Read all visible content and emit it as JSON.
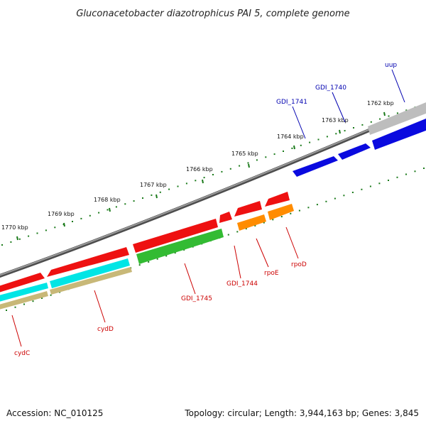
{
  "title": "Gluconacetobacter diazotrophicus PAI 5, complete genome",
  "footer": {
    "accession": "Accession: NC_010125",
    "summary": "Topology: circular; Length: 3,944,163 bp; Genes: 3,845"
  },
  "colors": {
    "backbone": "#7f7f7f",
    "tick": "#1a7a1a",
    "forward_label": "#0000b0",
    "reverse_label": "#cc0000",
    "blue": "#0a0adf",
    "red": "#ee1111",
    "orange": "#ff8c00",
    "cyan": "#00e5e5",
    "tan": "#c8b878",
    "green": "#33bb33",
    "grey": "#b0b0b0"
  },
  "ticks": [
    {
      "label": "1762 kbp"
    },
    {
      "label": "1763 kbp"
    },
    {
      "label": "1764 kbp"
    },
    {
      "label": "1765 kbp"
    },
    {
      "label": "1766 kbp"
    },
    {
      "label": "1767 kbp"
    },
    {
      "label": "1768 kbp"
    },
    {
      "label": "1769 kbp"
    },
    {
      "label": "1770 kbp"
    }
  ],
  "genes": [
    {
      "name": "uup",
      "strand": "forward",
      "color": "blue"
    },
    {
      "name": "GDI_1740",
      "strand": "forward",
      "color": "blue"
    },
    {
      "name": "GDI_1741",
      "strand": "forward",
      "color": "blue"
    },
    {
      "name": "rpoD",
      "strand": "reverse",
      "color": "red"
    },
    {
      "name": "rpoE",
      "strand": "reverse",
      "color": "red"
    },
    {
      "name": "GDI_1744",
      "strand": "reverse",
      "color": "red"
    },
    {
      "name": "GDI_1745",
      "strand": "reverse",
      "color": "red"
    },
    {
      "name": "cydD",
      "strand": "reverse",
      "color": "red"
    },
    {
      "name": "cydC",
      "strand": "reverse",
      "color": "red"
    }
  ]
}
